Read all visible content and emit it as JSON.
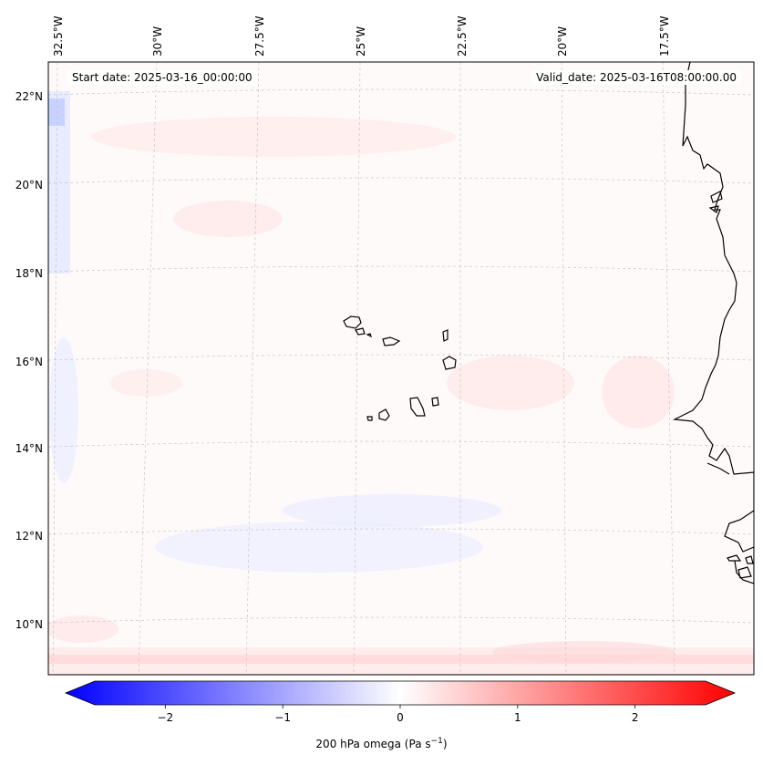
{
  "header": {
    "start_date": "Start date: 2025-03-16_00:00:00",
    "valid_date": "Valid_date: 2025-03-16T08:00:00.00"
  },
  "lon_labels": [
    "32.5°W",
    "30°W",
    "27.5°W",
    "25°W",
    "22.5°W",
    "20°W",
    "17.5°W"
  ],
  "lat_labels": [
    "22°N",
    "20°N",
    "18°N",
    "16°N",
    "14°N",
    "12°N",
    "10°N"
  ],
  "colorbar": {
    "title": "200 hPa omega (Pa s",
    "title_sup": "−1",
    "title_end": ")",
    "ticks": [
      "−2",
      "−1",
      "0",
      "1",
      "2"
    ],
    "min": -2.6,
    "max": 2.6,
    "tick_values": [
      -2,
      -1,
      0,
      1,
      2
    ],
    "colors": {
      "negative": "#0000ff",
      "zero": "#ffffff",
      "positive": "#ff0000"
    }
  },
  "map": {
    "coastline_color": "#000000",
    "gridline_color": "#bbbbbb"
  }
}
